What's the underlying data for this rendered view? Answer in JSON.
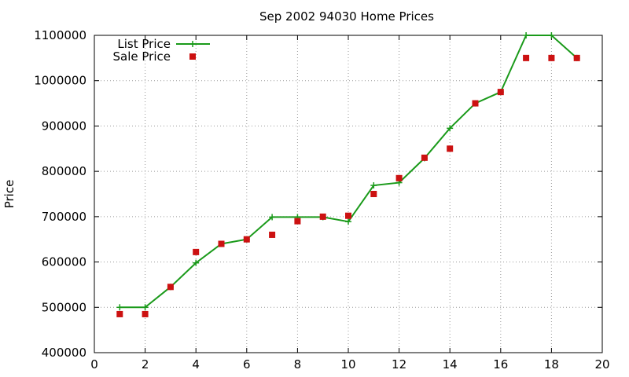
{
  "chart_data": {
    "type": "line",
    "title": "Sep 2002 94030 Home Prices",
    "xlabel": "",
    "ylabel": "Price",
    "xlim": [
      0,
      20
    ],
    "ylim": [
      400000,
      1100000
    ],
    "xticks": [
      0,
      2,
      4,
      6,
      8,
      10,
      12,
      14,
      16,
      18,
      20
    ],
    "yticks": [
      400000,
      500000,
      600000,
      700000,
      800000,
      900000,
      1000000,
      1100000
    ],
    "grid": true,
    "legend_position": "top-left",
    "series": [
      {
        "name": "List Price",
        "style": "line-points",
        "marker": "plus",
        "color": "#1a9a1a",
        "x": [
          1,
          2,
          3,
          4,
          5,
          6,
          7,
          8,
          9,
          10,
          11,
          12,
          13,
          14,
          15,
          16,
          17,
          18,
          19
        ],
        "y": [
          500000,
          500000,
          545000,
          598000,
          640000,
          650000,
          699000,
          699000,
          699000,
          689000,
          769000,
          775000,
          829000,
          895000,
          950000,
          975000,
          1100000,
          1100000,
          1050000
        ]
      },
      {
        "name": "Sale Price",
        "style": "points",
        "marker": "square",
        "color": "#cc1111",
        "x": [
          1,
          2,
          3,
          4,
          5,
          6,
          7,
          8,
          9,
          10,
          11,
          12,
          13,
          14,
          15,
          16,
          17,
          18,
          19
        ],
        "y": [
          485000,
          485000,
          545000,
          622000,
          640000,
          650000,
          660000,
          690000,
          700000,
          702000,
          750000,
          785000,
          830000,
          850000,
          950000,
          975000,
          1050000,
          1050000,
          1050000
        ]
      }
    ]
  }
}
